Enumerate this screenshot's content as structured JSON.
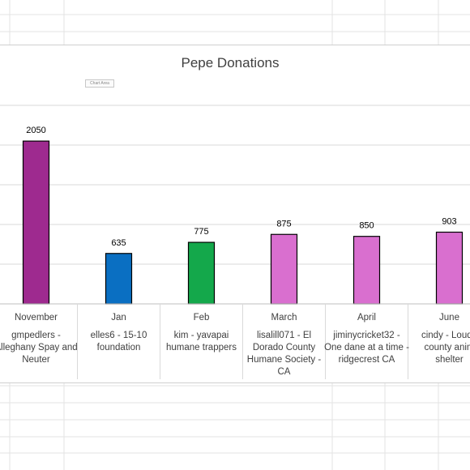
{
  "chart_data": {
    "type": "bar",
    "title": "Pepe Donations",
    "categories": [
      "November",
      "Jan",
      "Feb",
      "March",
      "April",
      "June"
    ],
    "descriptions": [
      [
        "gmpedlers -",
        "Alleghany Spay and",
        "Neuter"
      ],
      [
        "elles6 - 15-10",
        "foundation"
      ],
      [
        "kim - yavapai",
        "humane trappers"
      ],
      [
        "lisalill071 - El",
        "Dorado County",
        "Humane Society -",
        "CA"
      ],
      [
        "jiminycricket32 -",
        "One dane at a time -",
        "ridgecrest CA"
      ],
      [
        "cindy - Loudo",
        "county anim",
        "shelter"
      ]
    ],
    "values": [
      2050,
      635,
      775,
      875,
      850,
      903
    ],
    "colors": [
      "#9e2a8f",
      "#0a6fc2",
      "#14a84b",
      "#d96fcf",
      "#d96fcf",
      "#d96fcf"
    ],
    "data_labels": [
      "2050",
      "635",
      "775",
      "875",
      "850",
      "903"
    ],
    "ylim": [
      0,
      2500
    ],
    "grid": true
  },
  "tooltip": {
    "text": "Chart Area"
  }
}
